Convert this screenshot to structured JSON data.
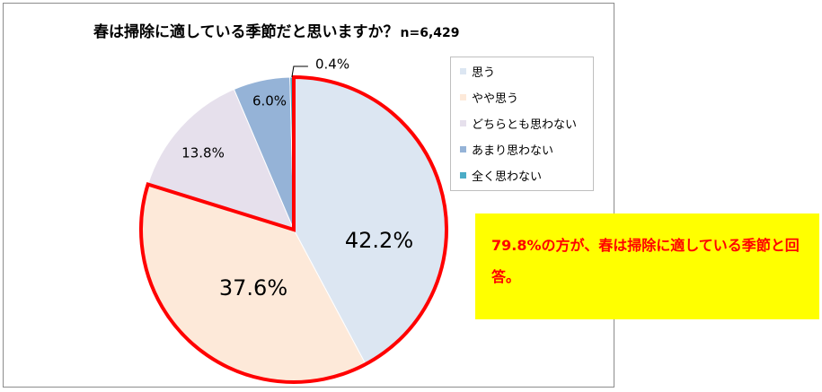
{
  "chart_data": {
    "type": "pie",
    "title": "春は掃除に適している季節だと思いますか？",
    "sample_size": "n=6,429",
    "categories": [
      "思う",
      "やや思う",
      "どちらとも思わない",
      "あまり思わない",
      "全く思わない"
    ],
    "values": [
      42.2,
      37.6,
      13.8,
      6.0,
      0.4
    ],
    "labels": [
      "42.2%",
      "37.6%",
      "13.8%",
      "6.0%",
      "0.4%"
    ],
    "colors": [
      "#dce6f2",
      "#fde9d9",
      "#e6e0ec",
      "#95b3d7",
      "#4bacc6"
    ],
    "highlight_color": "#ff0000",
    "highlighted_categories": [
      "思う",
      "やや思う"
    ],
    "legend_position": "right"
  },
  "callout": {
    "text": "79.8%の方が、春は掃除に適している季節と回答。",
    "background": "#ffff00",
    "text_color": "#ff0000"
  }
}
